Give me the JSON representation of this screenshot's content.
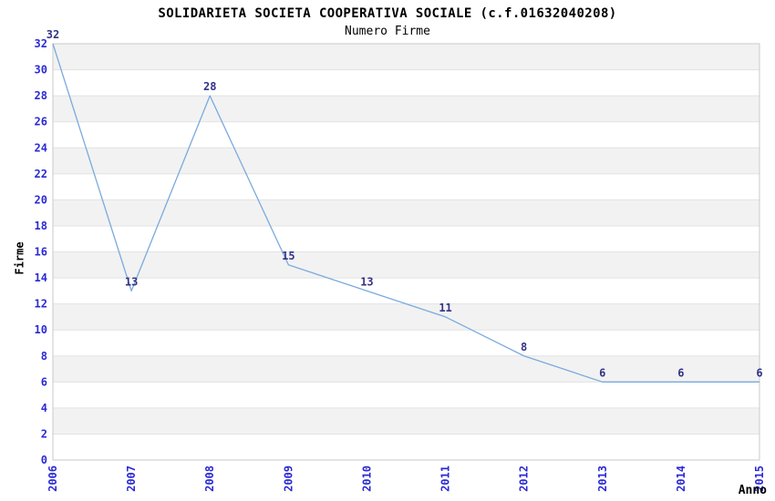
{
  "chart_data": {
    "type": "line",
    "title": "SOLIDARIETA SOCIETA COOPERATIVA SOCIALE (c.f.01632040208)",
    "subtitle": "Numero Firme",
    "xlabel": "Anno",
    "ylabel": "Firme",
    "categories": [
      "2006",
      "2007",
      "2008",
      "2009",
      "2010",
      "2011",
      "2012",
      "2013",
      "2014",
      "2015"
    ],
    "values": [
      32,
      13,
      28,
      15,
      13,
      11,
      8,
      6,
      6,
      6
    ],
    "point_labels": [
      "32",
      "13",
      "28",
      "15",
      "13",
      "11",
      "8",
      "6",
      "6",
      "6"
    ],
    "ylim": [
      0,
      32
    ],
    "ytick_step": 2,
    "grid": "horizontal-bands",
    "legend_position": "none",
    "colors": {
      "line": "#7aaade",
      "tick_label": "#2a2ad4",
      "point_label": "#333388",
      "band": "#f2f2f2",
      "grid_line": "#e2e2e2",
      "plot_border": "#c9c9c9",
      "text": "#000000",
      "background": "#ffffff"
    }
  }
}
